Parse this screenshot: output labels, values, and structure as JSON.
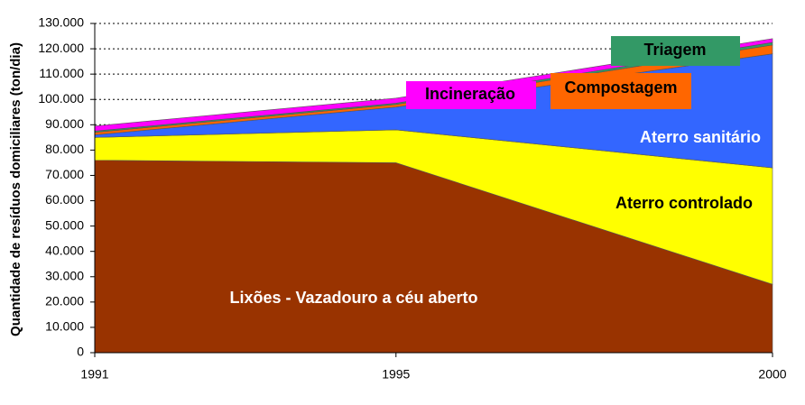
{
  "chart_data": {
    "type": "stacked-area",
    "y_label": "Quantidade de resíduos domiciliares (ton/dia)",
    "x": [
      1991,
      1995,
      2000
    ],
    "xlim": [
      1991,
      2000
    ],
    "xticks": [
      1991,
      1995,
      2000
    ],
    "ylim": [
      0,
      130000
    ],
    "yticks": [
      0,
      {
        "value": 10000,
        "label": "10.000"
      },
      {
        "value": 20000,
        "label": "20.000"
      },
      {
        "value": 30000,
        "label": "30.000"
      },
      {
        "value": 40000,
        "label": "40.000"
      },
      {
        "value": 50000,
        "label": "50.000"
      },
      {
        "value": 60000,
        "label": "60.000"
      },
      {
        "value": 70000,
        "label": "70.000"
      },
      {
        "value": 80000,
        "label": "80.000"
      },
      {
        "value": 90000,
        "label": "90.000"
      },
      {
        "value": 100000,
        "label": "100.000"
      },
      {
        "value": 110000,
        "label": "110.000"
      },
      {
        "value": 120000,
        "label": "120.000"
      },
      {
        "value": 130000,
        "label": "130.000"
      }
    ],
    "grid": true,
    "series": [
      {
        "name": "Lixões - Vazadouro a céu aberto",
        "color": "#993300",
        "values": [
          76000,
          75000,
          27000
        ]
      },
      {
        "name": "Aterro controlado",
        "color": "#ffff00",
        "values": [
          9000,
          13000,
          46000
        ]
      },
      {
        "name": "Aterro sanitário",
        "color": "#3366ff",
        "values": [
          1000,
          9000,
          45000
        ]
      },
      {
        "name": "Compostagem",
        "color": "#ff6600",
        "values": [
          1000,
          1000,
          3500
        ]
      },
      {
        "name": "Triagem",
        "color": "#339966",
        "values": [
          500,
          500,
          1000
        ]
      },
      {
        "name": "Incineração",
        "color": "#ff00ff",
        "values": [
          2000,
          2000,
          1500
        ]
      }
    ]
  }
}
